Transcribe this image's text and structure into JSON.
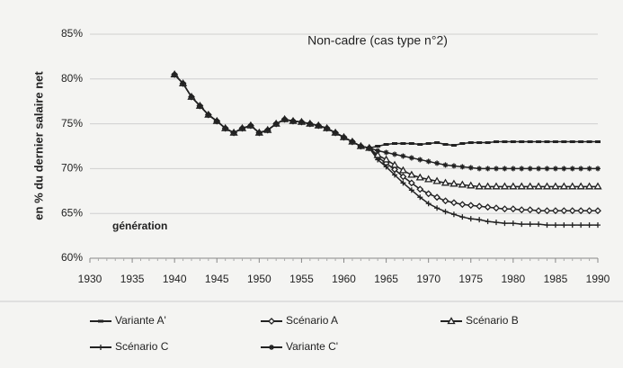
{
  "chart_data": {
    "type": "line",
    "title": "Non-cadre (cas type n°2)",
    "y_label": "en % du dernier salaire net",
    "annotation": "génération",
    "x": [
      1940,
      1941,
      1942,
      1943,
      1944,
      1945,
      1946,
      1947,
      1948,
      1949,
      1950,
      1951,
      1952,
      1953,
      1954,
      1955,
      1956,
      1957,
      1958,
      1959,
      1960,
      1961,
      1962,
      1963,
      1964,
      1965,
      1966,
      1967,
      1968,
      1969,
      1970,
      1971,
      1972,
      1973,
      1974,
      1975,
      1976,
      1977,
      1978,
      1979,
      1980,
      1981,
      1982,
      1983,
      1984,
      1985,
      1986,
      1987,
      1988,
      1989,
      1990
    ],
    "series": [
      {
        "name": "Variante A'",
        "color": "#222222",
        "marker": "dash",
        "values": [
          80.5,
          79.5,
          78,
          77,
          76,
          75.3,
          74.5,
          74,
          74.5,
          74.8,
          74,
          74.3,
          75,
          75.5,
          75.3,
          75.2,
          75,
          74.8,
          74.5,
          74,
          73.5,
          73,
          72.5,
          72.3,
          72.5,
          72.7,
          72.8,
          72.8,
          72.8,
          72.7,
          72.8,
          72.9,
          72.7,
          72.6,
          72.8,
          72.9,
          72.9,
          72.9,
          73,
          73,
          73,
          73,
          73,
          73,
          73,
          73,
          73,
          73,
          73,
          73,
          73
        ]
      },
      {
        "name": "Scénario A",
        "color": "#222222",
        "marker": "diamond",
        "values": [
          80.5,
          79.5,
          78,
          77,
          76,
          75.3,
          74.5,
          74,
          74.5,
          74.8,
          74,
          74.3,
          75,
          75.5,
          75.3,
          75.2,
          75,
          74.8,
          74.5,
          74,
          73.5,
          73,
          72.5,
          72.3,
          71.3,
          70.6,
          69.9,
          69.1,
          68.4,
          67.7,
          67.2,
          66.8,
          66.4,
          66.2,
          66,
          65.9,
          65.8,
          65.7,
          65.6,
          65.5,
          65.5,
          65.4,
          65.4,
          65.3,
          65.3,
          65.3,
          65.3,
          65.3,
          65.3,
          65.3,
          65.3
        ]
      },
      {
        "name": "Scénario B",
        "color": "#222222",
        "marker": "triangle",
        "values": [
          80.5,
          79.5,
          78,
          77,
          76,
          75.3,
          74.5,
          74,
          74.5,
          74.8,
          74,
          74.3,
          75,
          75.5,
          75.3,
          75.2,
          75,
          74.8,
          74.5,
          74,
          73.5,
          73,
          72.5,
          72.3,
          71.5,
          71,
          70.4,
          69.8,
          69.3,
          69,
          68.8,
          68.6,
          68.4,
          68.3,
          68.2,
          68.1,
          68,
          68,
          68,
          68,
          68,
          68,
          68,
          68,
          68,
          68,
          68,
          68,
          68,
          68,
          68
        ]
      },
      {
        "name": "Scénario C",
        "color": "#222222",
        "marker": "plus",
        "values": [
          80.5,
          79.5,
          78,
          77,
          76,
          75.3,
          74.5,
          74,
          74.5,
          74.8,
          74,
          74.3,
          75,
          75.5,
          75.3,
          75.2,
          75,
          74.8,
          74.5,
          74,
          73.5,
          73,
          72.5,
          72.3,
          71,
          70.2,
          69.3,
          68.4,
          67.6,
          66.8,
          66.1,
          65.6,
          65.2,
          64.9,
          64.6,
          64.4,
          64.3,
          64.1,
          64,
          63.9,
          63.9,
          63.8,
          63.8,
          63.8,
          63.7,
          63.7,
          63.7,
          63.7,
          63.7,
          63.7,
          63.7
        ]
      },
      {
        "name": "Variante C'",
        "color": "#222222",
        "marker": "star",
        "values": [
          80.5,
          79.5,
          78,
          77,
          76,
          75.3,
          74.5,
          74,
          74.5,
          74.8,
          74,
          74.3,
          75,
          75.5,
          75.3,
          75.2,
          75,
          74.8,
          74.5,
          74,
          73.5,
          73,
          72.5,
          72.3,
          72,
          71.8,
          71.6,
          71.4,
          71.2,
          71,
          70.8,
          70.6,
          70.4,
          70.3,
          70.2,
          70.1,
          70,
          70,
          70,
          70,
          70,
          70,
          70,
          70,
          70,
          70,
          70,
          70,
          70,
          70,
          70
        ]
      }
    ],
    "xlim": [
      1930,
      1990
    ],
    "xticks": [
      1930,
      1935,
      1940,
      1945,
      1950,
      1955,
      1960,
      1965,
      1970,
      1975,
      1980,
      1985,
      1990
    ],
    "ylim": [
      60,
      85
    ],
    "yticks": [
      {
        "value": 60,
        "label": "60%"
      },
      {
        "value": 65,
        "label": "65%"
      },
      {
        "value": 70,
        "label": "70%"
      },
      {
        "value": 75,
        "label": "75%"
      },
      {
        "value": 80,
        "label": "80%"
      },
      {
        "value": 85,
        "label": "85%"
      }
    ],
    "grid": true,
    "legend": "bottom"
  }
}
